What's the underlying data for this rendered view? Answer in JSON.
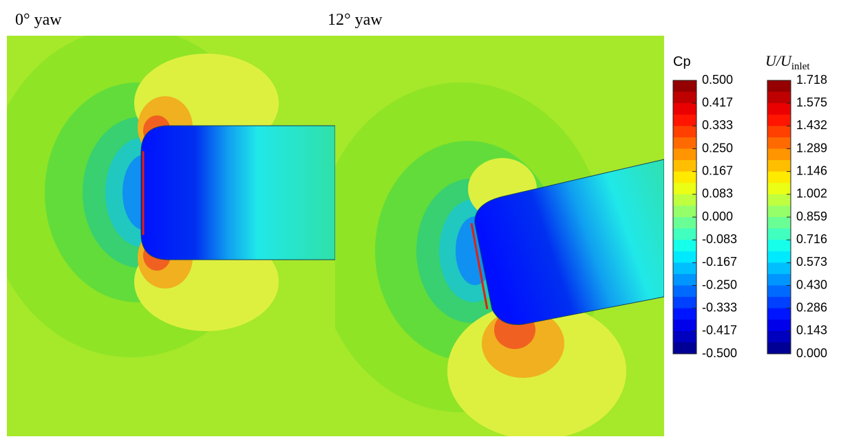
{
  "panels": [
    {
      "title": "0° yaw"
    },
    {
      "title": "12° yaw"
    }
  ],
  "colorbars": [
    {
      "title": "Cp",
      "labels": [
        "0.500",
        "0.417",
        "0.333",
        "0.250",
        "0.167",
        "0.083",
        "0.000",
        "-0.083",
        "-0.167",
        "-0.250",
        "-0.333",
        "-0.417",
        "-0.500"
      ]
    },
    {
      "title": {
        "main": "U/U",
        "sub": "inlet"
      },
      "labels": [
        "1.718",
        "1.575",
        "1.432",
        "1.289",
        "1.146",
        "1.002",
        "0.859",
        "0.716",
        "0.573",
        "0.430",
        "0.286",
        "0.143",
        "0.000"
      ]
    }
  ]
}
